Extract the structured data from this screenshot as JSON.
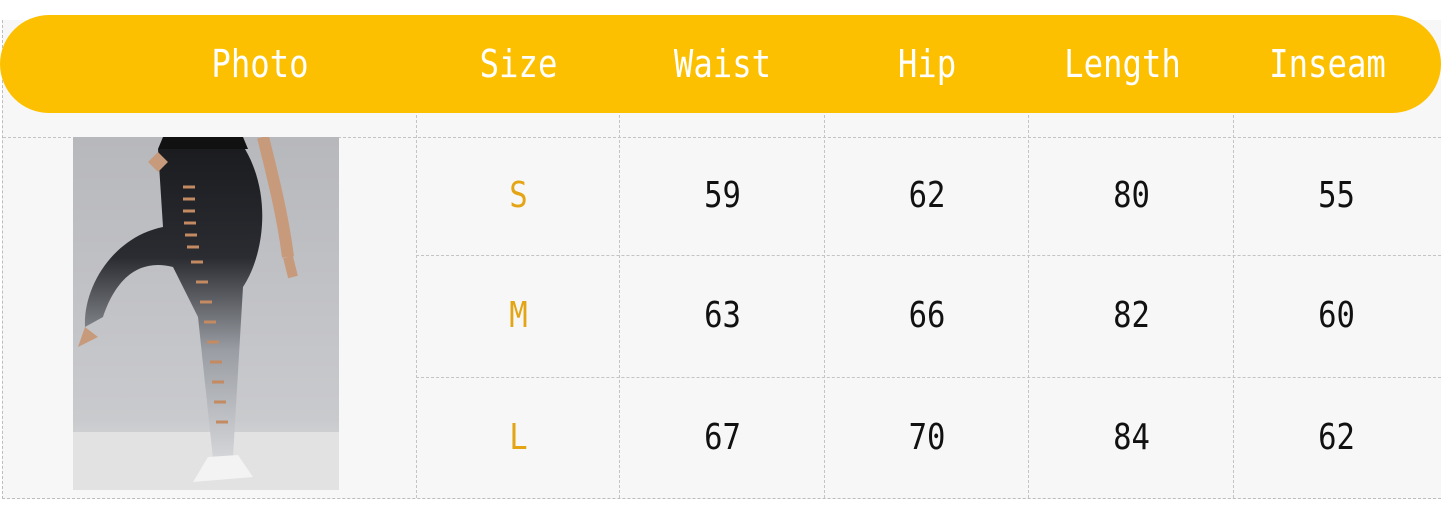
{
  "colors": {
    "header_bg": "#fdc000",
    "size_label": "#e4a514",
    "cell_text": "#111111"
  },
  "header": [
    "Photo",
    "Size",
    "Waist",
    "Hip",
    "Length",
    "Inseam"
  ],
  "photo": {
    "icon": "leggings-product-photo"
  },
  "rows": [
    {
      "size": "S",
      "waist": "59",
      "hip": "62",
      "length": "80",
      "inseam": "55"
    },
    {
      "size": "M",
      "waist": "63",
      "hip": "66",
      "length": "82",
      "inseam": "60"
    },
    {
      "size": "L",
      "waist": "67",
      "hip": "70",
      "length": "84",
      "inseam": "62"
    }
  ]
}
